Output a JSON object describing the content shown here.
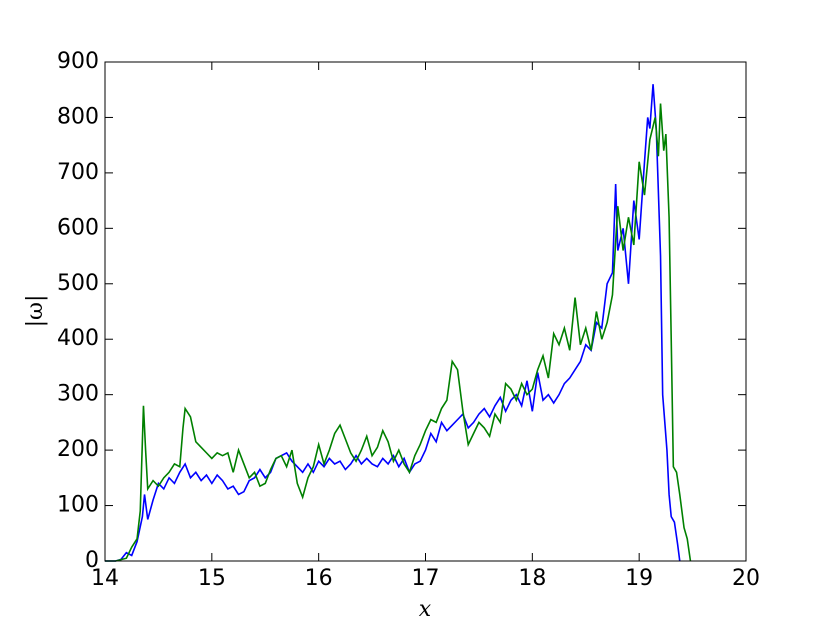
{
  "chart_data": {
    "type": "line",
    "xlabel": "x",
    "ylabel": "|ω|",
    "xlim": [
      14,
      20
    ],
    "xticks": [
      14,
      15,
      16,
      17,
      18,
      19,
      20
    ],
    "ylim": [
      0,
      900
    ],
    "yticks": [
      0,
      100,
      200,
      300,
      400,
      500,
      600,
      700,
      800,
      900
    ],
    "series": [
      {
        "color": "#0000ff",
        "x": [
          14.0,
          14.1,
          14.15,
          14.2,
          14.25,
          14.3,
          14.35,
          14.37,
          14.4,
          14.45,
          14.5,
          14.55,
          14.6,
          14.65,
          14.7,
          14.75,
          14.8,
          14.85,
          14.9,
          14.95,
          15.0,
          15.05,
          15.1,
          15.15,
          15.2,
          15.25,
          15.3,
          15.35,
          15.4,
          15.45,
          15.5,
          15.55,
          15.6,
          15.65,
          15.7,
          15.75,
          15.8,
          15.85,
          15.9,
          15.95,
          16.0,
          16.05,
          16.1,
          16.15,
          16.2,
          16.25,
          16.3,
          16.35,
          16.4,
          16.45,
          16.5,
          16.55,
          16.6,
          16.65,
          16.7,
          16.75,
          16.8,
          16.85,
          16.9,
          16.95,
          17.0,
          17.05,
          17.1,
          17.15,
          17.2,
          17.25,
          17.3,
          17.35,
          17.4,
          17.45,
          17.5,
          17.55,
          17.6,
          17.65,
          17.7,
          17.75,
          17.8,
          17.85,
          17.9,
          17.95,
          18.0,
          18.05,
          18.1,
          18.15,
          18.2,
          18.25,
          18.3,
          18.35,
          18.4,
          18.45,
          18.5,
          18.55,
          18.6,
          18.65,
          18.7,
          18.75,
          18.78,
          18.8,
          18.85,
          18.9,
          18.95,
          19.0,
          19.05,
          19.08,
          19.1,
          19.13,
          19.16,
          19.2,
          19.22,
          19.24,
          19.26,
          19.28,
          19.3,
          19.33,
          19.36,
          19.38
        ],
        "values": [
          0,
          0,
          3,
          15,
          10,
          35,
          80,
          120,
          75,
          110,
          140,
          130,
          150,
          140,
          160,
          175,
          150,
          160,
          145,
          155,
          140,
          155,
          145,
          130,
          135,
          120,
          125,
          145,
          150,
          165,
          150,
          160,
          185,
          190,
          195,
          180,
          170,
          160,
          175,
          160,
          180,
          170,
          185,
          175,
          180,
          165,
          175,
          190,
          175,
          185,
          175,
          170,
          185,
          175,
          190,
          170,
          185,
          160,
          175,
          180,
          200,
          230,
          215,
          250,
          235,
          245,
          255,
          265,
          240,
          250,
          265,
          275,
          260,
          280,
          295,
          270,
          290,
          300,
          280,
          325,
          270,
          340,
          290,
          300,
          285,
          300,
          320,
          330,
          345,
          360,
          390,
          380,
          430,
          420,
          500,
          520,
          680,
          560,
          600,
          500,
          650,
          580,
          720,
          800,
          780,
          860,
          780,
          550,
          300,
          250,
          200,
          120,
          80,
          70,
          30,
          0
        ]
      },
      {
        "color": "#008000",
        "x": [
          14.0,
          14.1,
          14.2,
          14.25,
          14.3,
          14.33,
          14.36,
          14.38,
          14.4,
          14.45,
          14.5,
          14.55,
          14.6,
          14.65,
          14.7,
          14.73,
          14.75,
          14.8,
          14.85,
          14.9,
          14.95,
          15.0,
          15.05,
          15.1,
          15.15,
          15.2,
          15.25,
          15.3,
          15.35,
          15.4,
          15.45,
          15.5,
          15.55,
          15.6,
          15.65,
          15.7,
          15.75,
          15.8,
          15.85,
          15.9,
          15.95,
          16.0,
          16.05,
          16.1,
          16.15,
          16.2,
          16.25,
          16.3,
          16.35,
          16.4,
          16.45,
          16.5,
          16.55,
          16.6,
          16.65,
          16.7,
          16.75,
          16.8,
          16.85,
          16.9,
          16.95,
          17.0,
          17.05,
          17.1,
          17.15,
          17.2,
          17.25,
          17.3,
          17.35,
          17.4,
          17.45,
          17.5,
          17.55,
          17.6,
          17.65,
          17.7,
          17.75,
          17.8,
          17.85,
          17.9,
          17.95,
          18.0,
          18.05,
          18.1,
          18.15,
          18.2,
          18.25,
          18.3,
          18.35,
          18.4,
          18.45,
          18.5,
          18.55,
          18.6,
          18.65,
          18.7,
          18.75,
          18.8,
          18.85,
          18.9,
          18.95,
          19.0,
          19.05,
          19.1,
          19.15,
          19.18,
          19.2,
          19.23,
          19.25,
          19.28,
          19.3,
          19.32,
          19.35,
          19.38,
          19.42,
          19.45,
          19.48
        ],
        "values": [
          0,
          0,
          5,
          25,
          40,
          90,
          280,
          200,
          130,
          145,
          135,
          150,
          160,
          175,
          170,
          240,
          275,
          260,
          215,
          205,
          195,
          185,
          195,
          190,
          195,
          160,
          200,
          175,
          150,
          160,
          135,
          140,
          165,
          185,
          190,
          170,
          200,
          140,
          115,
          150,
          170,
          210,
          175,
          200,
          230,
          245,
          220,
          195,
          180,
          200,
          225,
          190,
          205,
          235,
          215,
          180,
          200,
          175,
          160,
          190,
          210,
          235,
          255,
          250,
          275,
          290,
          360,
          345,
          270,
          210,
          230,
          250,
          240,
          225,
          265,
          250,
          320,
          310,
          290,
          320,
          300,
          310,
          345,
          370,
          330,
          410,
          390,
          420,
          380,
          475,
          390,
          420,
          380,
          450,
          400,
          430,
          480,
          640,
          560,
          620,
          570,
          720,
          660,
          760,
          800,
          730,
          825,
          740,
          770,
          620,
          400,
          170,
          160,
          120,
          60,
          40,
          0
        ]
      }
    ]
  }
}
